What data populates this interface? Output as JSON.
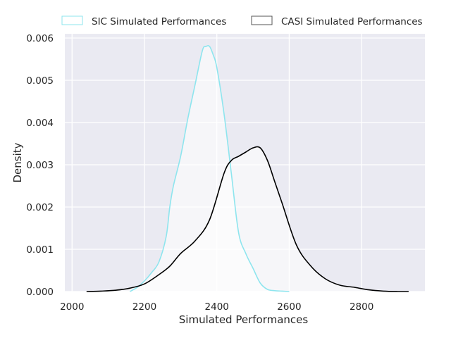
{
  "chart_data": {
    "type": "line",
    "title": "",
    "xlabel": "Simulated Performances",
    "ylabel": "Density",
    "xlim": [
      1980,
      2975
    ],
    "ylim": [
      0,
      0.0061
    ],
    "xticks": [
      2000,
      2200,
      2400,
      2600,
      2800
    ],
    "xtick_labels": [
      "2000",
      "2200",
      "2400",
      "2600",
      "2800"
    ],
    "yticks": [
      0,
      0.001,
      0.002,
      0.003,
      0.004,
      0.005,
      0.006
    ],
    "ytick_labels": [
      "0.000",
      "0.001",
      "0.002",
      "0.003",
      "0.004",
      "0.005",
      "0.006"
    ],
    "grid": true,
    "legend_position": "top",
    "series": [
      {
        "name": "SIC Simulated Performances",
        "color": "#8ee5ee",
        "x": [
          2160,
          2180,
          2200,
          2220,
          2240,
          2260,
          2270,
          2280,
          2300,
          2320,
          2340,
          2360,
          2370,
          2380,
          2390,
          2400,
          2420,
          2440,
          2460,
          2480,
          2500,
          2520,
          2540,
          2560,
          2580,
          2600
        ],
        "y": [
          0,
          0.0001,
          0.00025,
          0.00045,
          0.0007,
          0.0013,
          0.002,
          0.0025,
          0.0032,
          0.0041,
          0.0049,
          0.0057,
          0.0058,
          0.0058,
          0.0056,
          0.0053,
          0.0042,
          0.0028,
          0.0014,
          0.0009,
          0.00055,
          0.0002,
          5e-05,
          2e-05,
          1e-05,
          0
        ]
      },
      {
        "name": "CASI Simulated Performances",
        "color": "#000000",
        "x": [
          2040,
          2080,
          2120,
          2160,
          2200,
          2240,
          2270,
          2300,
          2340,
          2380,
          2420,
          2440,
          2460,
          2480,
          2500,
          2520,
          2540,
          2560,
          2580,
          2620,
          2660,
          2700,
          2740,
          2780,
          2820,
          2860,
          2900,
          2930
        ],
        "y": [
          0,
          1e-05,
          3e-05,
          8e-05,
          0.00018,
          0.0004,
          0.0006,
          0.0009,
          0.0012,
          0.0017,
          0.0028,
          0.0031,
          0.0032,
          0.0033,
          0.0034,
          0.0034,
          0.0031,
          0.0026,
          0.0021,
          0.0011,
          0.0006,
          0.0003,
          0.00015,
          0.0001,
          4e-05,
          1e-05,
          0,
          0
        ]
      }
    ]
  }
}
